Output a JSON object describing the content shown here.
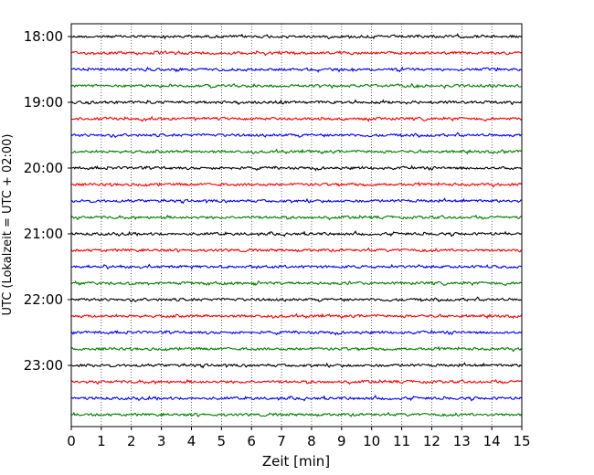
{
  "chart_data": {
    "type": "line",
    "title": "",
    "xlabel": "Zeit  [min]",
    "ylabel": "UTC (Lokalzeit = UTC + 02:00)",
    "xlim": [
      0,
      15
    ],
    "x_ticks": [
      "0",
      "1",
      "2",
      "3",
      "4",
      "5",
      "6",
      "7",
      "8",
      "9",
      "10",
      "11",
      "12",
      "13",
      "14",
      "15"
    ],
    "y_ticks": [
      "18:00",
      "19:00",
      "20:00",
      "21:00",
      "22:00",
      "23:00"
    ],
    "grid": "vertical dotted lines at each minute",
    "legend": "none",
    "trace_interval_minutes": 15,
    "traces_start": "18:00",
    "trace_count": 24,
    "series_colors": [
      "#000000",
      "#ff0000",
      "#0000ff",
      "#008000"
    ],
    "color_cycle_note": "colors repeat in order black, red, blue, green for successive 15-minute traces",
    "data_note": "each trace is a noisy seismogram line centered on its start time"
  }
}
